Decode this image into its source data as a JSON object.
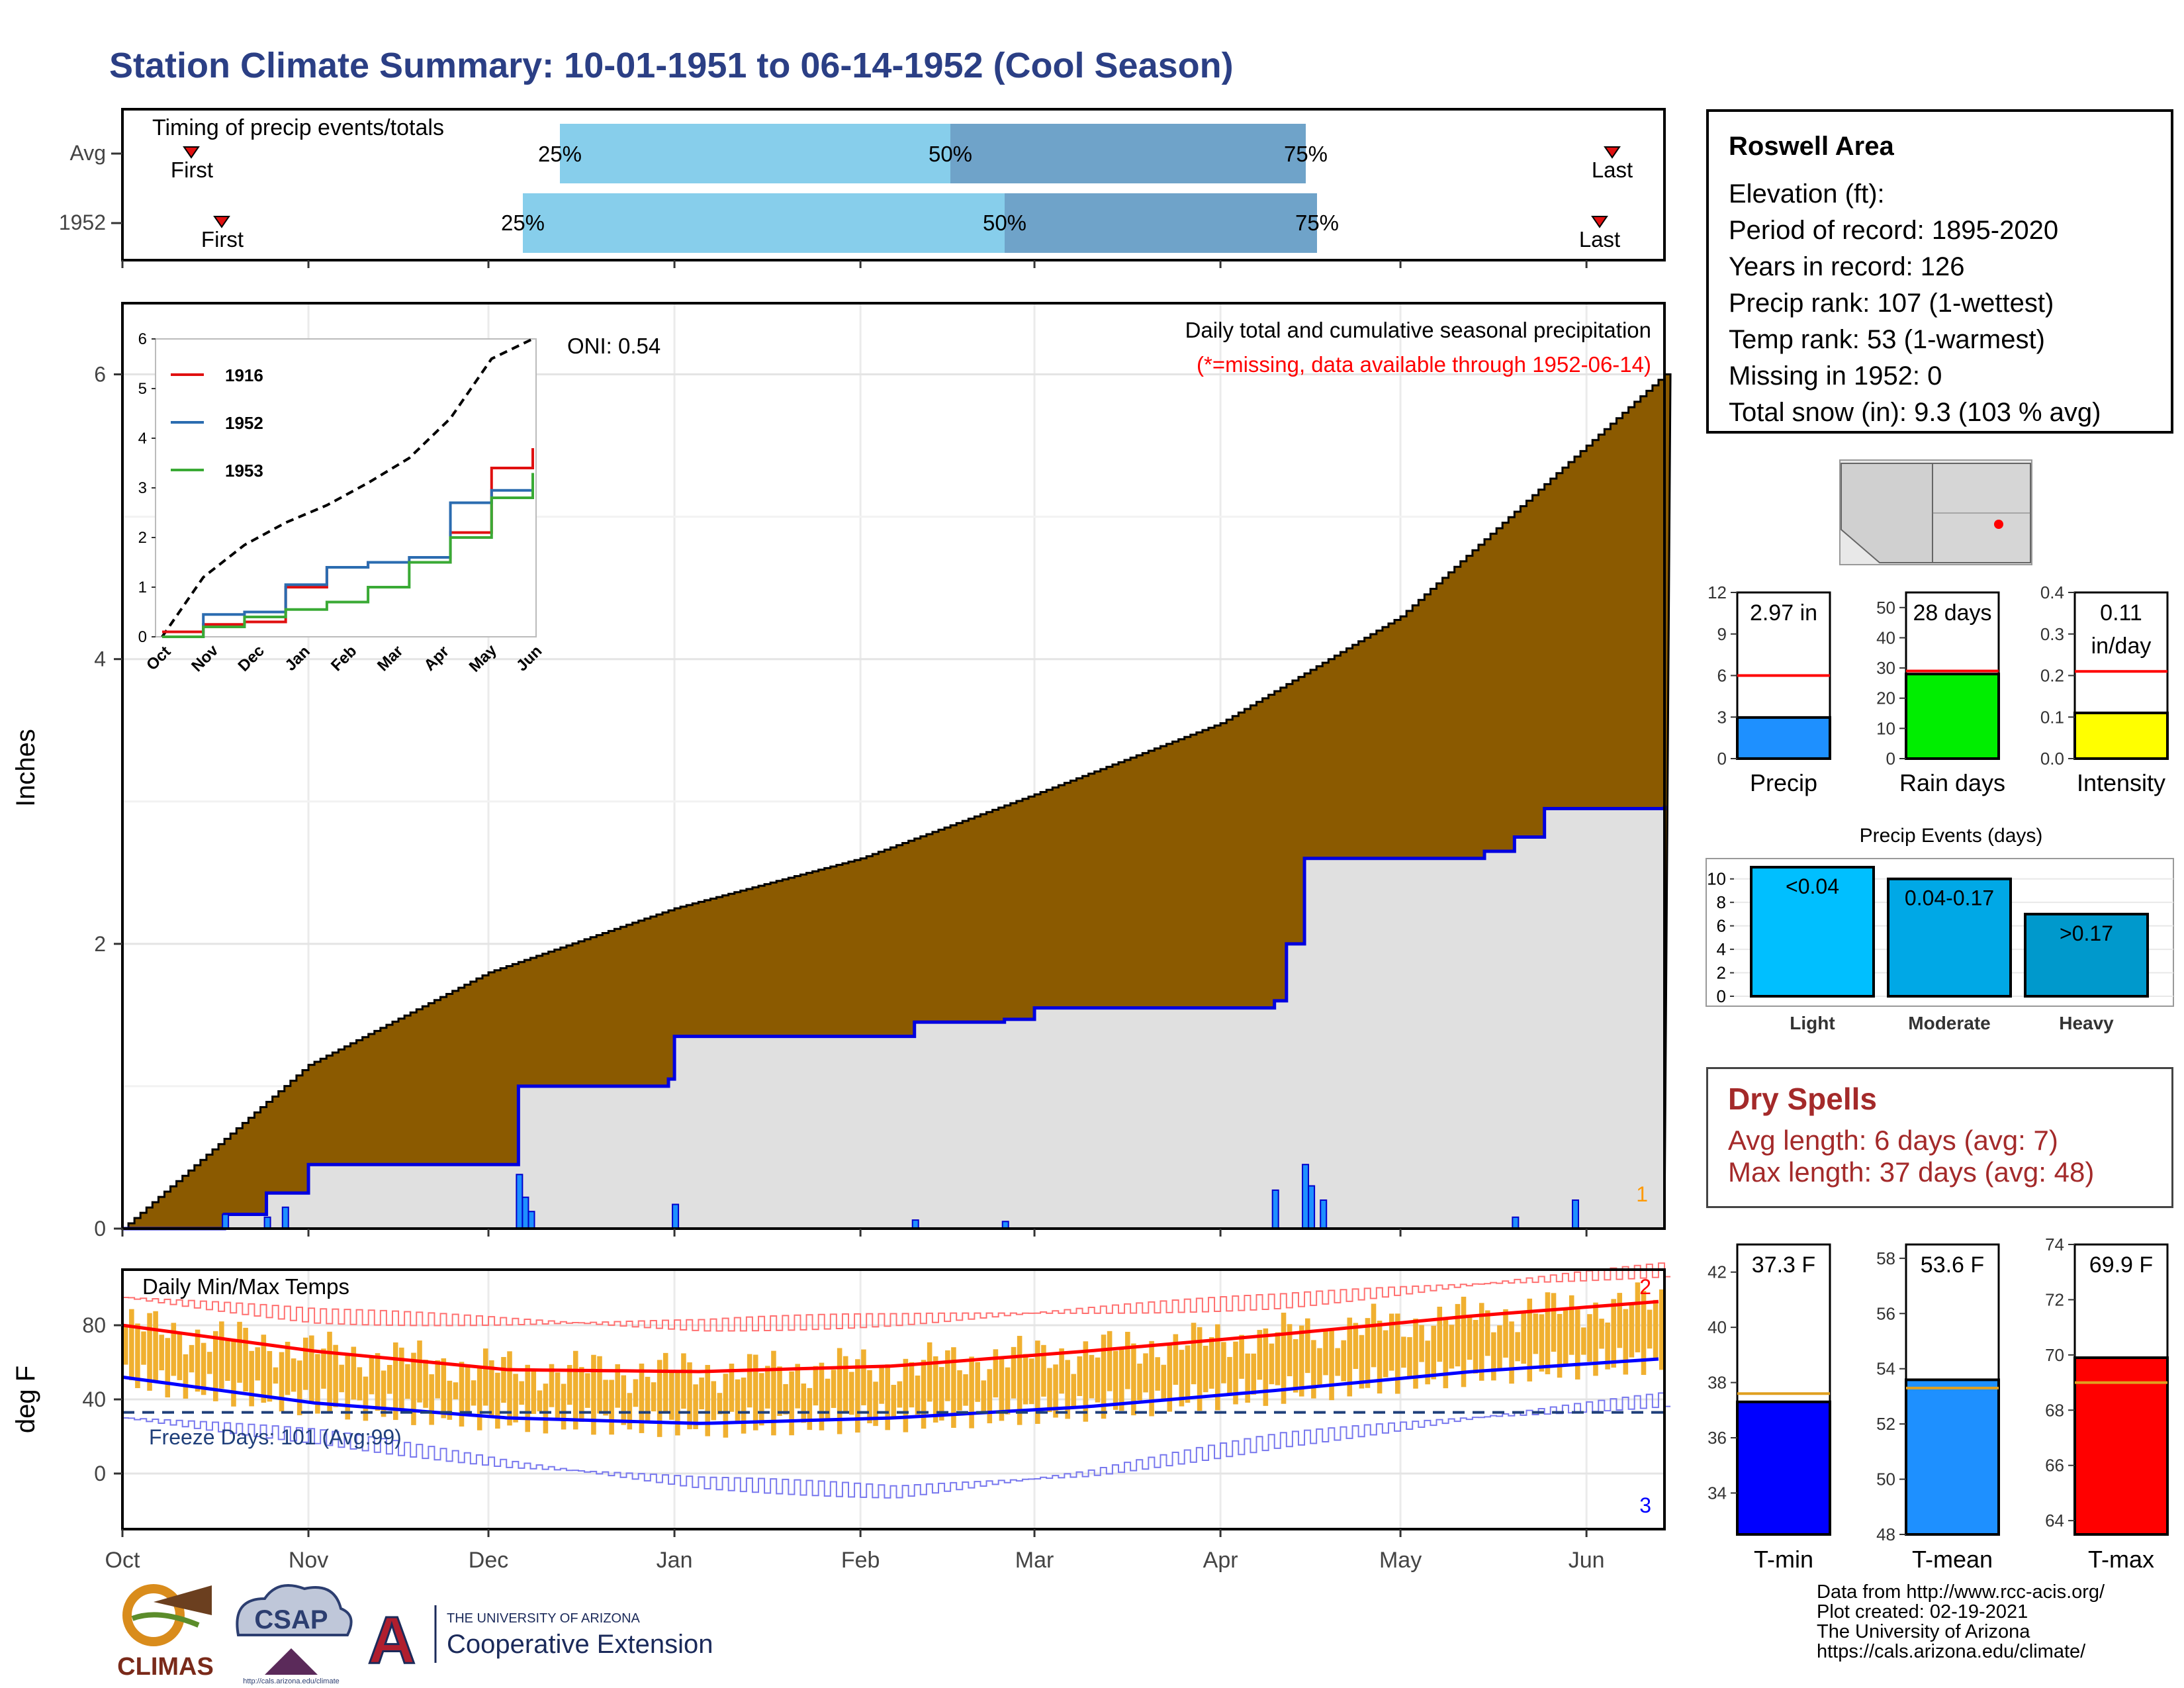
{
  "title": "Station Climate Summary: 10-01-1951 to 06-14-1952 (Cool Season)",
  "timing": {
    "heading": "Timing of precip events/totals",
    "rows": [
      {
        "label": "Avg",
        "first_label": "First",
        "last_label": "Last",
        "p25": "25%",
        "p50": "50%",
        "p75": "75%"
      },
      {
        "label": "1952",
        "first_label": "First",
        "last_label": "Last",
        "p25": "25%",
        "p50": "50%",
        "p75": "75%"
      }
    ]
  },
  "station": {
    "name": "Roswell Area",
    "lines": [
      "Elevation (ft):",
      "Period of record: 1895-2020",
      "Years in record: 126",
      "Precip rank: 107 (1-wettest)",
      "Temp rank: 53 (1-warmest)",
      "Missing in 1952: 0",
      "Total snow (in): 9.3 (103 % avg)"
    ]
  },
  "precip_panel": {
    "oni": "ONI: 0.54",
    "desc1": "Daily total and cumulative seasonal precipitation",
    "desc2": "(*=missing, data available through 1952-06-14)",
    "ylabel": "Inches",
    "corner": "1"
  },
  "temp_panel": {
    "title": "Daily Min/Max Temps",
    "ylabel": "deg F",
    "freeze": "Freeze Days: 101 (Avg:99)",
    "label_top": "2",
    "label_bottom": "3"
  },
  "dry_spells": {
    "title": "Dry Spells",
    "avg": "Avg length: 6 days (avg: 7)",
    "max": "Max length: 37 days (avg: 48)"
  },
  "credits": [
    "Data from http://www.rcc-acis.org/",
    "Plot created: 02-19-2021",
    "The University of Arizona",
    "https://cals.arizona.edu/climate/"
  ],
  "logos": {
    "climas": "CLIMAS",
    "csap": "CSAP",
    "csap_url": "http://cals.arizona.edu/climate",
    "ua_top": "THE UNIVERSITY OF ARIZONA",
    "ua_bottom": "Cooperative Extension"
  },
  "colors": {
    "title": "#2b3f85",
    "avg_cum": "#8b5a00",
    "obs_cum": "#e0e0e0",
    "obs_line": "#0000e0",
    "bar_light": "#87ceeb",
    "bar_dark": "#6fa3c9",
    "precip_bar": "#1e90ff",
    "rain_bar": "#00ee00",
    "intensity_bar": "#ffff00",
    "tmin_bar": "#0000ff",
    "tmean_bar": "#1e90ff",
    "tmax_bar": "#ff0000",
    "temp_bar": "#f0b030"
  },
  "chart_data": [
    {
      "type": "line",
      "title": "Daily total and cumulative seasonal precipitation",
      "ylabel": "Inches",
      "x_ticks": [
        "Oct",
        "Nov",
        "Dec",
        "Jan",
        "Feb",
        "Mar",
        "Apr",
        "May",
        "Jun"
      ],
      "ylim": [
        0,
        6.5
      ],
      "series": [
        {
          "name": "avg cumulative",
          "x": [
            "10-01",
            "11-01",
            "12-01",
            "01-01",
            "02-01",
            "03-01",
            "04-01",
            "05-01",
            "06-01",
            "06-14"
          ],
          "values": [
            0.0,
            1.15,
            1.8,
            2.25,
            2.6,
            3.05,
            3.55,
            4.3,
            5.5,
            6.0
          ]
        },
        {
          "name": "1952 cumulative",
          "x": [
            "10-01",
            "10-18",
            "10-25",
            "11-01",
            "11-30",
            "12-06",
            "12-31",
            "01-01",
            "02-10",
            "02-25",
            "03-01",
            "04-10",
            "04-12",
            "04-15",
            "05-15",
            "05-20",
            "05-25",
            "06-14"
          ],
          "values": [
            0.0,
            0.1,
            0.25,
            0.45,
            0.45,
            1.0,
            1.05,
            1.35,
            1.45,
            1.47,
            1.55,
            1.6,
            2.0,
            2.6,
            2.65,
            2.75,
            2.95,
            2.97
          ]
        }
      ],
      "daily_precip": [
        {
          "x": "10-18",
          "value": 0.1
        },
        {
          "x": "10-25",
          "value": 0.08
        },
        {
          "x": "10-28",
          "value": 0.15
        },
        {
          "x": "12-06",
          "value": 0.38
        },
        {
          "x": "12-07",
          "value": 0.22
        },
        {
          "x": "12-08",
          "value": 0.12
        },
        {
          "x": "01-01",
          "value": 0.17
        },
        {
          "x": "02-10",
          "value": 0.06
        },
        {
          "x": "02-25",
          "value": 0.05
        },
        {
          "x": "04-10",
          "value": 0.27
        },
        {
          "x": "04-15",
          "value": 0.45
        },
        {
          "x": "04-16",
          "value": 0.3
        },
        {
          "x": "04-18",
          "value": 0.2
        },
        {
          "x": "05-20",
          "value": 0.08
        },
        {
          "x": "05-30",
          "value": 0.2
        }
      ]
    },
    {
      "type": "line",
      "title": "",
      "ylim": [
        0,
        6
      ],
      "x_ticks": [
        "Oct",
        "Nov",
        "Dec",
        "Jan",
        "Feb",
        "Mar",
        "Apr",
        "May",
        "Jun"
      ],
      "series": [
        {
          "name": "avg",
          "values": [
            0.0,
            1.2,
            1.85,
            2.3,
            2.65,
            3.1,
            3.6,
            4.4,
            5.6,
            6.0
          ]
        },
        {
          "name": "1916",
          "values": [
            0.1,
            0.25,
            0.3,
            1.0,
            1.4,
            1.5,
            1.5,
            2.1,
            3.4,
            3.8
          ]
        },
        {
          "name": "1952",
          "values": [
            0.0,
            0.45,
            0.5,
            1.05,
            1.4,
            1.5,
            1.6,
            2.7,
            2.95,
            2.97
          ]
        },
        {
          "name": "1953",
          "values": [
            0.0,
            0.2,
            0.4,
            0.55,
            0.7,
            1.0,
            1.5,
            2.0,
            2.8,
            3.3
          ]
        }
      ]
    },
    {
      "type": "line",
      "title": "Daily Min/Max Temps",
      "ylabel": "deg F",
      "ylim": [
        -30,
        110
      ],
      "x_ticks": [
        "Oct",
        "Nov",
        "Dec",
        "Jan",
        "Feb",
        "Mar",
        "Apr",
        "May",
        "Jun"
      ],
      "series": [
        {
          "name": "avg max",
          "values": [
            80,
            66,
            56,
            55,
            58,
            66,
            75,
            85,
            93
          ]
        },
        {
          "name": "avg min",
          "values": [
            52,
            38,
            30,
            27,
            30,
            36,
            45,
            55,
            62
          ]
        },
        {
          "name": "record max",
          "values": [
            95,
            85,
            82,
            80,
            83,
            88,
            93,
            102,
            110
          ]
        },
        {
          "name": "record min",
          "values": [
            30,
            20,
            5,
            -5,
            -10,
            0,
            18,
            30,
            40
          ]
        }
      ],
      "freeze_line": 33
    },
    {
      "type": "bar",
      "categories": [
        "Precip"
      ],
      "values": [
        2.97
      ],
      "value_label": "2.97 in",
      "avg": 6.0,
      "ylim": [
        0,
        12
      ]
    },
    {
      "type": "bar",
      "categories": [
        "Rain days"
      ],
      "values": [
        28
      ],
      "value_label": "28 days",
      "avg": 29.0,
      "ylim": [
        0,
        55
      ]
    },
    {
      "type": "bar",
      "categories": [
        "Intensity"
      ],
      "values": [
        0.11
      ],
      "value_label": [
        "0.11",
        "in/day"
      ],
      "avg": 0.21,
      "ylim": [
        0,
        0.4
      ]
    },
    {
      "type": "bar",
      "title": "Precip Events (days)",
      "categories": [
        "Light",
        "Moderate",
        "Heavy"
      ],
      "bar_labels": [
        "<0.04",
        "0.04-0.17",
        ">0.17"
      ],
      "values": [
        11,
        10,
        7
      ],
      "ylim": [
        0,
        11
      ]
    },
    {
      "type": "bar",
      "categories": [
        "T-min"
      ],
      "values": [
        37.3
      ],
      "value_label": "37.3 F",
      "avg": 37.6,
      "ylim": [
        32.5,
        43
      ]
    },
    {
      "type": "bar",
      "categories": [
        "T-mean"
      ],
      "values": [
        53.6
      ],
      "value_label": "53.6 F",
      "avg": 53.3,
      "ylim": [
        48,
        58.5
      ]
    },
    {
      "type": "bar",
      "categories": [
        "T-max"
      ],
      "values": [
        69.9
      ],
      "value_label": "69.9 F",
      "avg": 69.0,
      "ylim": [
        63.5,
        74
      ]
    }
  ]
}
